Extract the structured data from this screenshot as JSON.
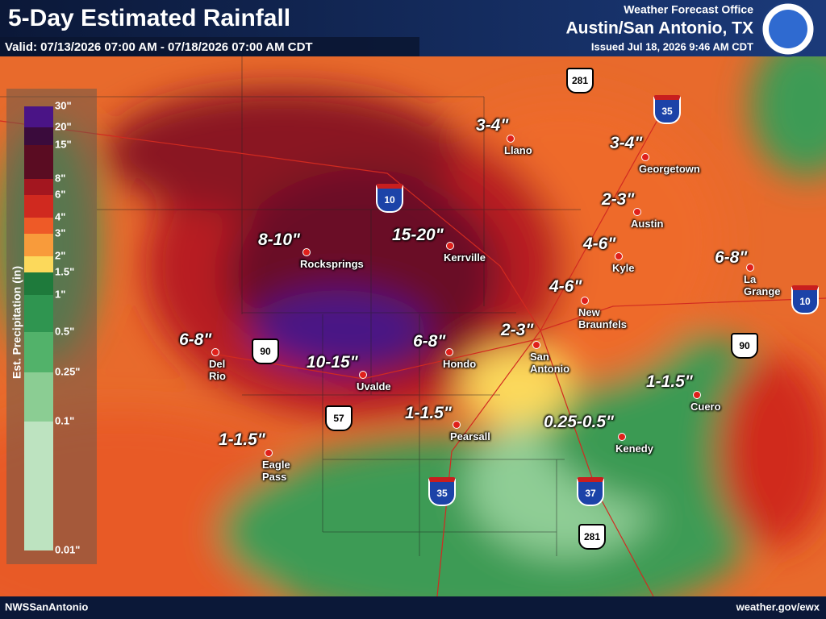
{
  "header": {
    "title": "5-Day Estimated Rainfall",
    "valid": "Valid: 07/13/2026 07:00 AM - 07/18/2026 07:00 AM CDT",
    "office": "Weather Forecast Office",
    "location": "Austin/San Antonio, TX",
    "issued": "Issued Jul 18, 2026 9:46 AM CDT"
  },
  "legend": {
    "title": "Est. Precipitation (in)",
    "labels": [
      "30\"",
      "20\"",
      "15\"",
      "8\"",
      "6\"",
      "4\"",
      "3\"",
      "2\"",
      "1.5\"",
      "1\"",
      "0.5\"",
      "0.25\"",
      "0.1\"",
      "0.01\""
    ],
    "colors": [
      "#4a1486",
      "#3a0b3c",
      "#5a0c22",
      "#a3161f",
      "#d0291f",
      "#ee5a27",
      "#f89b3b",
      "#fcd95b",
      "#1e7a3b",
      "#2f9550",
      "#52b26a",
      "#8bcd93",
      "#bde3c0"
    ]
  },
  "places": [
    {
      "amount": "3-4\"",
      "city": "Llano"
    },
    {
      "amount": "3-4\"",
      "city": "Georgetown"
    },
    {
      "amount": "2-3\"",
      "city": "Austin"
    },
    {
      "amount": "4-6\"",
      "city": "Kyle"
    },
    {
      "amount": "6-8\"",
      "city": "La\nGrange"
    },
    {
      "amount": "4-6\"",
      "city": "New\nBraunfels"
    },
    {
      "amount": "2-3\"",
      "city": "San\nAntonio"
    },
    {
      "amount": "15-20\"",
      "city": "Kerrville"
    },
    {
      "amount": "8-10\"",
      "city": "Rocksprings"
    },
    {
      "amount": "6-8\"",
      "city": "Del\nRio"
    },
    {
      "amount": "10-15\"",
      "city": "Uvalde"
    },
    {
      "amount": "6-8\"",
      "city": "Hondo"
    },
    {
      "amount": "1-1.5\"",
      "city": "Pearsall"
    },
    {
      "amount": "1-1.5\"",
      "city": "Eagle\nPass"
    },
    {
      "amount": "0.25-0.5\"",
      "city": "Kenedy"
    },
    {
      "amount": "1-1.5\"",
      "city": "Cuero"
    }
  ],
  "highways": [
    "281",
    "35",
    "10",
    "90",
    "57",
    "35",
    "37",
    "281",
    "10",
    "90"
  ],
  "footer": {
    "left": "NWSSanAntonio",
    "right": "weather.gov/ewx"
  }
}
